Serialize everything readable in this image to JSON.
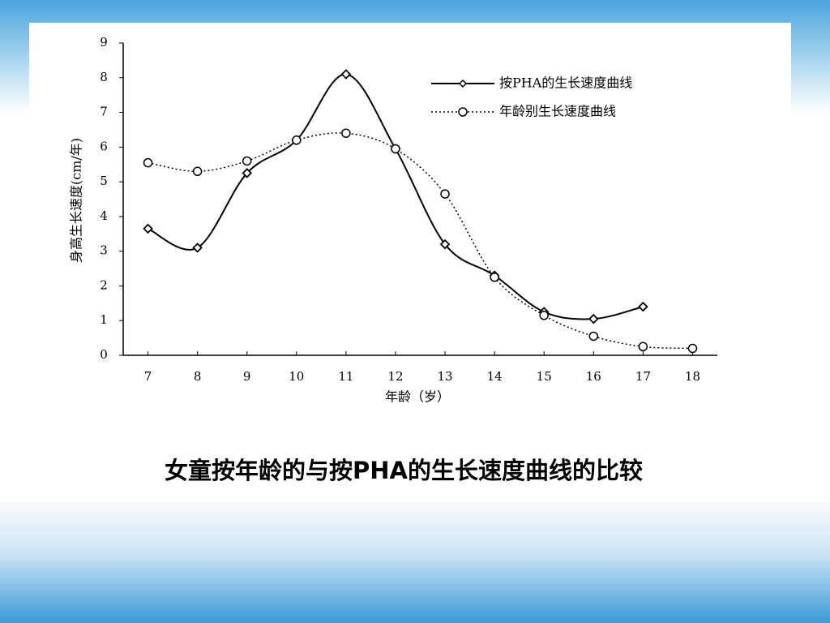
{
  "chart_data": {
    "type": "line",
    "title": "女童按年龄的与按PHA的生长速度曲线的比较",
    "x_label": "年龄（岁）",
    "y_label": "身高生长速度(cm/年)",
    "x": [
      7,
      8,
      9,
      10,
      11,
      12,
      13,
      14,
      15,
      16,
      17,
      18
    ],
    "xlim": [
      6.5,
      18.5
    ],
    "xticks": [
      7,
      8,
      9,
      10,
      11,
      12,
      13,
      14,
      15,
      16,
      17,
      18
    ],
    "ylim": [
      0,
      9
    ],
    "yticks": [
      0,
      1,
      2,
      3,
      4,
      5,
      6,
      7,
      8,
      9
    ],
    "legend": "upper right",
    "series": [
      {
        "name": "按PHA的生长速度曲线",
        "color": "#000000",
        "style": "solid",
        "marker": "diamond",
        "values": [
          3.65,
          3.1,
          5.25,
          6.2,
          8.1,
          5.95,
          3.2,
          2.3,
          1.25,
          1.05,
          1.4,
          null
        ]
      },
      {
        "name": "年龄别生长速度曲线",
        "color": "#000000",
        "style": "dotted",
        "marker": "circle",
        "values": [
          5.55,
          5.3,
          5.6,
          6.2,
          6.4,
          5.95,
          4.65,
          2.25,
          1.15,
          0.55,
          0.25,
          0.2
        ]
      }
    ]
  }
}
